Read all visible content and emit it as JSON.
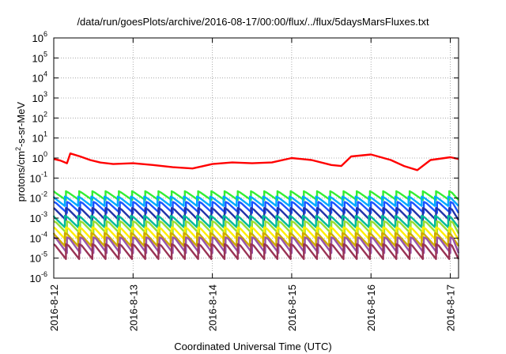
{
  "chart_data": {
    "type": "line",
    "title": "/data/run/goesPlots/archive/2016-08-17/00:00/flux/../flux/5daysMarsFluxes.txt",
    "xlabel": "Coordinated Universal Time (UTC)",
    "ylabel": "protons/cm²-s-sr-MeV",
    "ylabel_parts": {
      "base": "protons/cm",
      "sup": "2",
      "rest": "-s-sr-MeV"
    },
    "y_scale": "log",
    "ylim": [
      1e-06,
      1000000.0
    ],
    "y_ticks": [
      {
        "base": "10",
        "exp": "-6",
        "value": 1e-06
      },
      {
        "base": "10",
        "exp": "-5",
        "value": 1e-05
      },
      {
        "base": "10",
        "exp": "-4",
        "value": 0.0001
      },
      {
        "base": "10",
        "exp": "-3",
        "value": 0.001
      },
      {
        "base": "10",
        "exp": "-2",
        "value": 0.01
      },
      {
        "base": "10",
        "exp": "-1",
        "value": 0.1
      },
      {
        "base": "10",
        "exp": "0",
        "value": 1
      },
      {
        "base": "10",
        "exp": "1",
        "value": 10.0
      },
      {
        "base": "10",
        "exp": "2",
        "value": 100.0
      },
      {
        "base": "10",
        "exp": "3",
        "value": 1000.0
      },
      {
        "base": "10",
        "exp": "4",
        "value": 10000.0
      },
      {
        "base": "10",
        "exp": "5",
        "value": 100000.0
      },
      {
        "base": "10",
        "exp": "6",
        "value": 1000000.0
      }
    ],
    "xlim": [
      "2016-08-12",
      "2016-08-17 02:30"
    ],
    "x_ticks": [
      "2016-8-12",
      "2016-8-13",
      "2016-8-14",
      "2016-8-15",
      "2016-8-16",
      "2016-8-17"
    ],
    "grid": true,
    "sawtooth_periods_per_day": 6,
    "series": [
      {
        "color": "#ff0000",
        "values": [
          [
            "2016-08-12 00:00",
            0.9
          ],
          [
            "2016-08-12 02:00",
            0.75
          ],
          [
            "2016-08-12 04:00",
            0.55
          ],
          [
            "2016-08-12 05:00",
            1.7
          ],
          [
            "2016-08-12 08:00",
            1.2
          ],
          [
            "2016-08-12 11:00",
            0.8
          ],
          [
            "2016-08-12 14:00",
            0.6
          ],
          [
            "2016-08-12 18:00",
            0.5
          ],
          [
            "2016-08-13 00:00",
            0.55
          ],
          [
            "2016-08-13 06:00",
            0.45
          ],
          [
            "2016-08-13 12:00",
            0.35
          ],
          [
            "2016-08-13 18:00",
            0.3
          ],
          [
            "2016-08-14 00:00",
            0.5
          ],
          [
            "2016-08-14 06:00",
            0.6
          ],
          [
            "2016-08-14 12:00",
            0.55
          ],
          [
            "2016-08-14 18:00",
            0.6
          ],
          [
            "2016-08-15 00:00",
            1.0
          ],
          [
            "2016-08-15 06:00",
            0.8
          ],
          [
            "2016-08-15 12:00",
            0.45
          ],
          [
            "2016-08-15 15:00",
            0.4
          ],
          [
            "2016-08-15 18:00",
            1.2
          ],
          [
            "2016-08-16 00:00",
            1.5
          ],
          [
            "2016-08-16 06:00",
            0.8
          ],
          [
            "2016-08-16 10:00",
            0.4
          ],
          [
            "2016-08-16 14:00",
            0.25
          ],
          [
            "2016-08-16 18:00",
            0.8
          ],
          [
            "2016-08-17 00:00",
            1.1
          ],
          [
            "2016-08-17 02:30",
            0.9
          ]
        ]
      },
      {
        "color": "#33ee33",
        "peak": 0.022,
        "trough": 0.008
      },
      {
        "color": "#00aaff",
        "peak": 0.012,
        "trough": 0.004
      },
      {
        "color": "#1a55ff",
        "peak": 0.0065,
        "trough": 0.0018
      },
      {
        "color": "#2233aa",
        "peak": 0.0032,
        "trough": 0.0008
      },
      {
        "color": "#00bb99",
        "peak": 0.0013,
        "trough": 0.00035
      },
      {
        "color": "#99dd33",
        "peak": 0.0007,
        "trough": 0.00017
      },
      {
        "color": "#ffee00",
        "peak": 0.00035,
        "trough": 8e-05
      },
      {
        "color": "#ccaa00",
        "peak": 0.00018,
        "trough": 4e-05
      },
      {
        "color": "#9955aa",
        "peak": 0.00011,
        "trough": 1.8e-05
      },
      {
        "color": "#993355",
        "peak": 5e-05,
        "trough": 9e-06
      }
    ]
  }
}
